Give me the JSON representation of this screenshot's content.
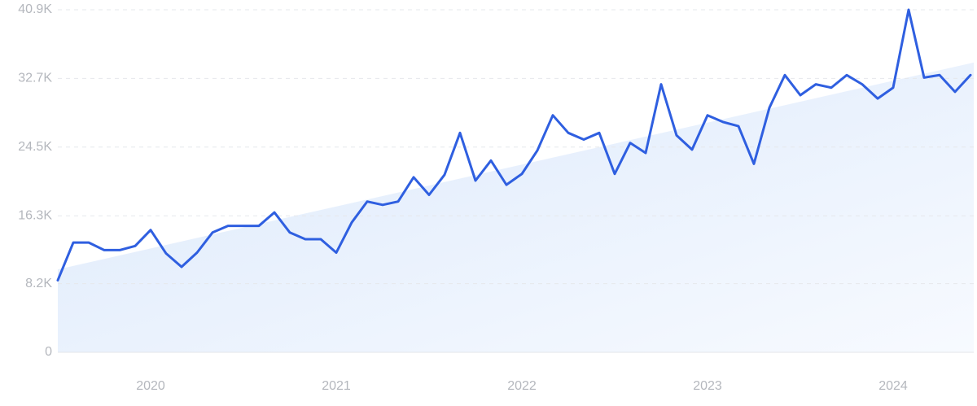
{
  "chart_data": {
    "type": "line",
    "categories": [
      null,
      null,
      null,
      null,
      null,
      null,
      "2020",
      null,
      null,
      null,
      null,
      null,
      null,
      null,
      null,
      null,
      null,
      null,
      "2021",
      null,
      null,
      null,
      null,
      null,
      null,
      null,
      null,
      null,
      null,
      null,
      "2022",
      null,
      null,
      null,
      null,
      null,
      null,
      null,
      null,
      null,
      null,
      null,
      "2023",
      null,
      null,
      null,
      null,
      null,
      null,
      null,
      null,
      null,
      null,
      null,
      "2024",
      null,
      null,
      null,
      null,
      null
    ],
    "series": [
      {
        "color": "#2f5fe0",
        "values": [
          8600,
          13100,
          13100,
          12200,
          12200,
          12700,
          14600,
          11800,
          10200,
          11900,
          14300,
          15100,
          15100,
          15100,
          16700,
          14300,
          13500,
          13500,
          11900,
          15500,
          18000,
          17600,
          18000,
          20900,
          18800,
          21200,
          26200,
          20500,
          22900,
          20000,
          21300,
          24100,
          28300,
          26200,
          25400,
          26200,
          21300,
          25000,
          23800,
          32000,
          25900,
          24200,
          28300,
          27500,
          27000,
          22500,
          29200,
          33100,
          30700,
          32000,
          31600,
          33100,
          32000,
          30300,
          31600,
          40900,
          32800,
          33100,
          31100,
          33100
        ]
      }
    ],
    "trend": [
      9900,
      34600
    ],
    "ylim": [
      0,
      40900
    ],
    "yticks": [
      0,
      {
        "value": 8200,
        "label": "8.2K"
      },
      {
        "value": 16300,
        "label": "16.3K"
      },
      {
        "value": 24500,
        "label": "24.5K"
      },
      {
        "value": 32700,
        "label": "32.7K"
      },
      {
        "value": 40900,
        "label": "40.9K"
      }
    ],
    "grid": true
  }
}
